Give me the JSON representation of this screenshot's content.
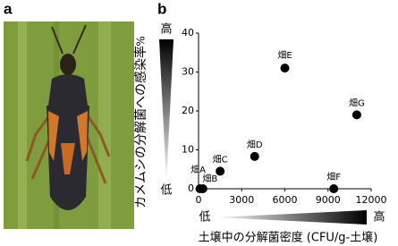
{
  "panel_labels": [
    "a",
    "b"
  ],
  "chart_data": {
    "type": "scatter",
    "x_label": "土壌中の分解菌密度 (CFU/g-土壌)",
    "y_label": "カメムシの分解菌への感染率",
    "y_unit": "%",
    "x": [
      100,
      300,
      1500,
      3900,
      6000,
      9400,
      11000
    ],
    "values": [
      0,
      0,
      4.5,
      8.3,
      31,
      0,
      19
    ],
    "point_labels": [
      "畑A",
      "畑B",
      "畑C",
      "畑D",
      "畑E",
      "畑F",
      "畑G"
    ],
    "color": "#000000",
    "xlim": [
      0,
      12000
    ],
    "xticks": [
      0,
      3000,
      6000,
      9000,
      12000
    ],
    "ylim": [
      0,
      40
    ],
    "yticks": [
      0,
      10,
      20,
      30,
      40
    ],
    "grid": false,
    "gradient_labels": {
      "y_high": "高",
      "y_low": "低",
      "x_low": "低",
      "x_high": "高"
    }
  }
}
